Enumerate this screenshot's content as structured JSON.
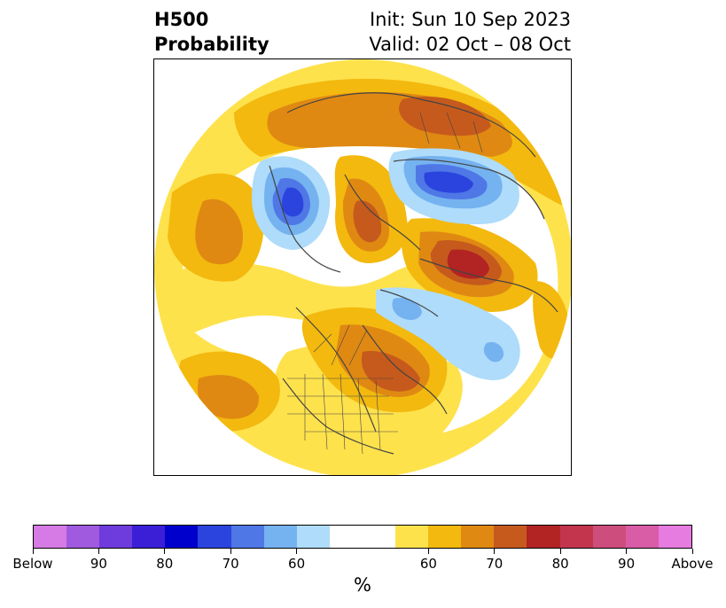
{
  "header": {
    "left_line1": "H500",
    "left_line2": "Probability",
    "right_line1": "Init: Sun 10 Sep 2023",
    "right_line2": "Valid: 02 Oct – 08 Oct"
  },
  "colorbar": {
    "colors": [
      "#d67be6",
      "#a05ae0",
      "#6e3bdc",
      "#3a1fd6",
      "#0000cc",
      "#2a44dd",
      "#4f77e6",
      "#75b2f0",
      "#aedcfa",
      "#ffffff",
      "#ffffff",
      "#fee24c",
      "#f3b90f",
      "#df8913",
      "#c65a1c",
      "#b22323",
      "#c2354d",
      "#cd4d7c",
      "#d95ca7",
      "#e67be0"
    ],
    "tick_labels": [
      "Below",
      "90",
      "80",
      "70",
      "60",
      "60",
      "70",
      "80",
      "90",
      "Above"
    ],
    "unit": "%"
  },
  "map": {
    "projection": "north polar stereographic",
    "colors": {
      "yellow": "#fee24c",
      "light_orange": "#f3b90f",
      "orange": "#df8913",
      "dark_orange": "#c65a1c",
      "red": "#b22323",
      "light_blue": "#aedcfa",
      "blue": "#75b2f0",
      "mid_blue": "#4f77e6",
      "deep_blue": "#2a44dd",
      "navy": "#0000cc",
      "coast": "#444444"
    }
  }
}
